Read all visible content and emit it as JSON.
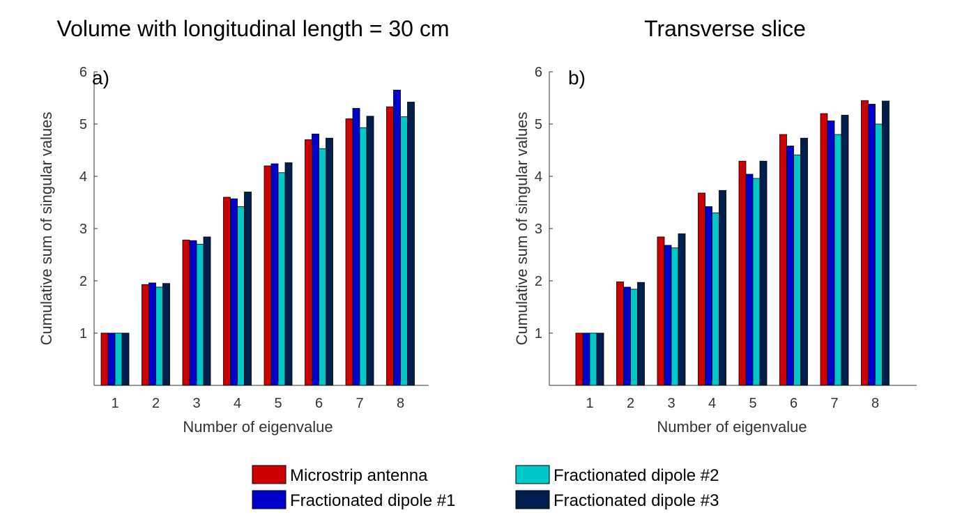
{
  "chart_data": [
    {
      "type": "bar",
      "title": "Volume with longitudinal length = 30 cm",
      "panel_label": "a)",
      "xlabel": "Number of eigenvalue",
      "ylabel": "Cumulative sum of singular values",
      "ylim": [
        0,
        6
      ],
      "yticks": [
        1,
        2,
        3,
        4,
        5,
        6
      ],
      "categories": [
        "1",
        "2",
        "3",
        "4",
        "5",
        "6",
        "7",
        "8"
      ],
      "series": [
        {
          "name": "Microstrip antenna",
          "values": [
            1.0,
            1.93,
            2.78,
            3.6,
            4.2,
            4.7,
            5.1,
            5.33
          ]
        },
        {
          "name": "Fractionated dipole #1",
          "values": [
            1.0,
            1.96,
            2.77,
            3.57,
            4.24,
            4.81,
            5.3,
            5.65
          ]
        },
        {
          "name": "Fractionated dipole #2",
          "values": [
            1.0,
            1.88,
            2.7,
            3.42,
            4.07,
            4.53,
            4.93,
            5.14
          ]
        },
        {
          "name": "Fractionated dipole #3",
          "values": [
            1.0,
            1.95,
            2.84,
            3.7,
            4.26,
            4.73,
            5.15,
            5.42
          ]
        }
      ]
    },
    {
      "type": "bar",
      "title": "Transverse slice",
      "panel_label": "b)",
      "xlabel": "Number of eigenvalue",
      "ylabel": "Cumulative sum of singular values",
      "ylim": [
        0,
        6
      ],
      "yticks": [
        1,
        2,
        3,
        4,
        5,
        6
      ],
      "categories": [
        "1",
        "2",
        "3",
        "4",
        "5",
        "6",
        "7",
        "8"
      ],
      "series": [
        {
          "name": "Microstrip antenna",
          "values": [
            1.0,
            1.98,
            2.84,
            3.68,
            4.29,
            4.8,
            5.2,
            5.45
          ]
        },
        {
          "name": "Fractionated dipole #1",
          "values": [
            1.0,
            1.88,
            2.68,
            3.42,
            4.04,
            4.58,
            5.06,
            5.38
          ]
        },
        {
          "name": "Fractionated dipole #2",
          "values": [
            1.0,
            1.84,
            2.63,
            3.3,
            3.96,
            4.41,
            4.8,
            5.0
          ]
        },
        {
          "name": "Fractionated dipole #3",
          "values": [
            1.0,
            1.97,
            2.9,
            3.73,
            4.29,
            4.73,
            5.17,
            5.44
          ]
        }
      ]
    }
  ],
  "legend": {
    "items": [
      {
        "label": "Microstrip antenna",
        "color": "#cc0000"
      },
      {
        "label": "Fractionated dipole #1",
        "color": "#0000cc"
      },
      {
        "label": "Fractionated dipole #2",
        "color": "#00c8c8"
      },
      {
        "label": "Fractionated dipole #3",
        "color": "#001f4d"
      }
    ]
  },
  "colors": [
    "#cc0000",
    "#0000cc",
    "#00c8c8",
    "#001f4d"
  ]
}
